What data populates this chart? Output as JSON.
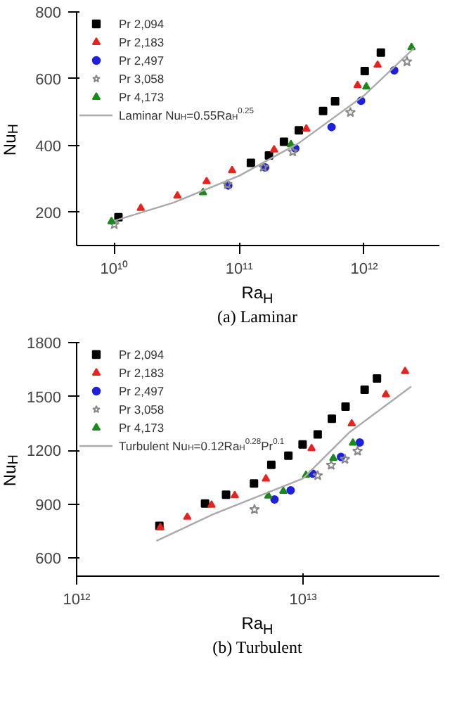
{
  "chart_data": [
    {
      "type": "scatter",
      "title": "(a)  Laminar",
      "xlabel": "Ra$_{H}$",
      "ylabel": "Nu$_{H}$",
      "log": "x",
      "grid": false,
      "legend": "top left",
      "xlim": [
        5000000000.0,
        4000000000000.0
      ],
      "xticks": [
        {
          "value": 10000000000.0,
          "label": "10¹⁰"
        },
        {
          "value": 100000000000.0,
          "label": "10¹¹"
        },
        {
          "value": 1000000000000.0,
          "label": "10¹²"
        }
      ],
      "ylim": [
        100,
        800
      ],
      "yticks": [
        200,
        400,
        600,
        800
      ],
      "series": [
        {
          "name": "Pr 2,094",
          "color": "#000000",
          "marker": "square",
          "x": [
            10800000000.0,
            124000000000.0,
            173000000000.0,
            228000000000.0,
            300000000000.0,
            469000000000.0,
            585000000000.0,
            1010000000000.0,
            1360000000000.0
          ],
          "values": [
            185,
            348,
            370,
            411,
            445,
            503,
            532,
            623,
            678
          ]
        },
        {
          "name": "Pr 2,183",
          "color": "#e8231f",
          "marker": "triangle",
          "x": [
            16300000000.0,
            32000000000.0,
            54800000000.0,
            87700000000.0,
            190000000000.0,
            344000000000.0,
            885000000000.0,
            1280000000000.0
          ],
          "values": [
            212,
            249,
            292,
            325,
            387,
            450,
            580,
            641
          ]
        },
        {
          "name": "Pr 2,497",
          "color": "#1f1fdf",
          "marker": "circle",
          "x": [
            81700000000.0,
            161000000000.0,
            281000000000.0,
            548000000000.0,
            944000000000.0,
            1740000000000.0
          ],
          "values": [
            280,
            334,
            391,
            455,
            534,
            625
          ]
        },
        {
          "name": "Pr 3,058",
          "color": "#888888",
          "marker": "star",
          "x": [
            10000000000.0,
            80400000000.0,
            156000000000.0,
            268000000000.0,
            776000000000.0,
            2200000000000.0
          ],
          "values": [
            163,
            283,
            335,
            381,
            499,
            651
          ]
        },
        {
          "name": "Pr 4,173",
          "color": "#1a8a1a",
          "marker": "triangle",
          "x": [
            9500000000.0,
            51300000000.0,
            259000000000.0,
            1040000000000.0,
            2390000000000.0
          ],
          "values": [
            172,
            259,
            403,
            576,
            694
          ]
        },
        {
          "name": "Laminar Nu$_{H}$=0.55Ra$_{H}$$^{0.25}$",
          "type": "line",
          "color": "#aaaaaa",
          "x": [
            10000000000.0,
            30000000000.0,
            100000000000.0,
            300000000000.0,
            1000000000000.0,
            2500000000000.0
          ],
          "values": [
            174,
            229,
            309,
            407,
            550,
            691
          ]
        }
      ]
    },
    {
      "type": "scatter",
      "title": "(b)  Turbulent",
      "xlabel": "Ra$_{H}$",
      "ylabel": "Nu$_{H}$",
      "log": "x",
      "grid": false,
      "legend": "top left",
      "xlim": [
        1000000000000.0,
        40000000000000.0
      ],
      "xticks": [
        {
          "value": 1000000000000.0,
          "label": "10¹²"
        },
        {
          "value": 10000000000000.0,
          "label": "10¹³"
        }
      ],
      "ylim": [
        500,
        1800
      ],
      "yticks": [
        600,
        900,
        1200,
        1500,
        1800
      ],
      "series": [
        {
          "name": "Pr 2,094",
          "color": "#000000",
          "marker": "square",
          "x": [
            2320000000000.0,
            3690000000000.0,
            4570000000000.0,
            6070000000000.0,
            7240000000000.0,
            8610000000000.0,
            9950000000000.0,
            11600000000000.0,
            13400000000000.0,
            15400000000000.0,
            18700000000000.0,
            21200000000000.0
          ],
          "values": [
            780,
            904,
            953,
            1016,
            1120,
            1171,
            1233,
            1289,
            1376,
            1444,
            1538,
            1600
          ]
        },
        {
          "name": "Pr 2,183",
          "color": "#e8231f",
          "marker": "triangle",
          "x": [
            2340000000000.0,
            3080000000000.0,
            3940000000000.0,
            4990000000000.0,
            6850000000000.0,
            10900000000000.0,
            16400000000000.0,
            23200000000000.0,
            28200000000000.0
          ],
          "values": [
            771,
            829,
            896,
            949,
            1042,
            1211,
            1349,
            1511,
            1640
          ]
        },
        {
          "name": "Pr 2,497",
          "color": "#1f1fdf",
          "marker": "circle",
          "x": [
            7480000000000.0,
            8810000000000.0,
            11000000000000.0,
            14700000000000.0,
            17800000000000.0
          ],
          "values": [
            927,
            978,
            1071,
            1164,
            1244
          ]
        },
        {
          "name": "Pr 3,058",
          "color": "#888888",
          "marker": "star",
          "x": [
            6100000000000.0,
            11600000000000.0,
            13300000000000.0,
            15300000000000.0,
            17400000000000.0
          ],
          "values": [
            871,
            1060,
            1118,
            1151,
            1196
          ]
        },
        {
          "name": "Pr 4,173",
          "color": "#1a8a1a",
          "marker": "triangle",
          "x": [
            7020000000000.0,
            8180000000000.0,
            10300000000000.0,
            13600000000000.0,
            16600000000000.0
          ],
          "values": [
            947,
            973,
            1062,
            1156,
            1242
          ]
        },
        {
          "name": "Turbulent Nu$_{H}$=0.12Ra$_{H}$$^{0.28}$Pr$^{0.1}$",
          "type": "line",
          "color": "#aaaaaa",
          "x": [
            2250000000000.0,
            4000000000000.0,
            10000000000000.0,
            16000000000000.0,
            30000000000000.0
          ],
          "values": [
            696,
            844,
            1044,
            1300,
            1555
          ]
        }
      ]
    }
  ]
}
